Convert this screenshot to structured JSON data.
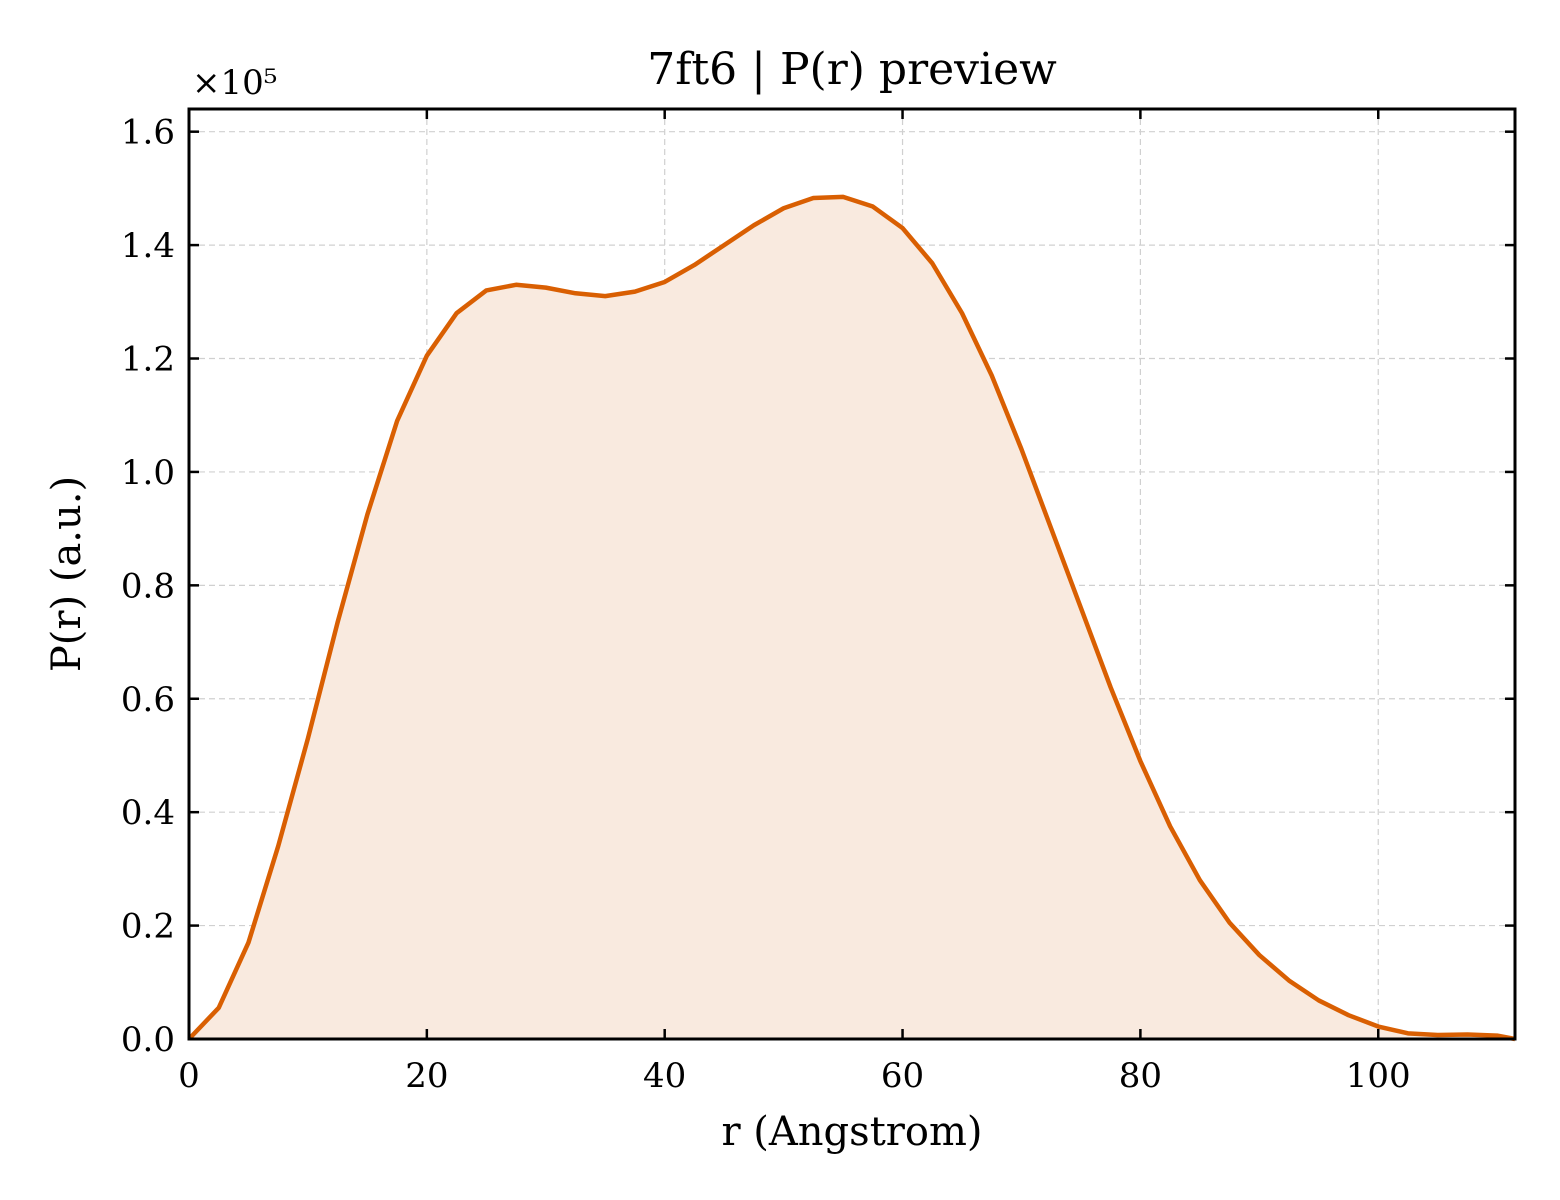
{
  "chart_data": {
    "type": "area",
    "title": "7ft6 | P(r) preview",
    "xlabel": "r (Angstrom)",
    "ylabel": "P(r) (a.u.)",
    "y_offset_label": "×10⁵",
    "xlim": [
      0,
      111.5
    ],
    "ylim": [
      0,
      1.64
    ],
    "x_ticks": [
      0,
      20,
      40,
      60,
      80,
      100
    ],
    "x_tick_labels": [
      "0",
      "20",
      "40",
      "60",
      "80",
      "100"
    ],
    "y_ticks": [
      0.0,
      0.2,
      0.4,
      0.6,
      0.8,
      1.0,
      1.2,
      1.4,
      1.6
    ],
    "y_tick_labels": [
      "0.0",
      "0.2",
      "0.4",
      "0.6",
      "0.8",
      "1.0",
      "1.2",
      "1.4",
      "1.6"
    ],
    "grid": true,
    "colors": {
      "line": "#d95f02",
      "fill": "#f9eadf"
    },
    "series": [
      {
        "x": [
          0,
          2.5,
          5,
          7.5,
          10,
          12.5,
          15,
          17.5,
          20,
          22.5,
          25,
          27.5,
          30,
          32.5,
          35,
          37.5,
          40,
          42.5,
          45,
          47.5,
          50,
          52.5,
          55,
          57.5,
          60,
          62.5,
          65,
          67.5,
          70,
          72.5,
          75,
          77.5,
          80,
          82.5,
          85,
          87.5,
          90,
          92.5,
          95,
          97.5,
          100,
          102.5,
          105,
          107.5,
          110,
          111.5
        ],
        "values": [
          0.0,
          0.055,
          0.17,
          0.34,
          0.53,
          0.735,
          0.925,
          1.09,
          1.205,
          1.28,
          1.32,
          1.33,
          1.325,
          1.315,
          1.31,
          1.318,
          1.335,
          1.365,
          1.4,
          1.435,
          1.465,
          1.483,
          1.485,
          1.468,
          1.43,
          1.368,
          1.28,
          1.17,
          1.04,
          0.9,
          0.76,
          0.62,
          0.49,
          0.375,
          0.28,
          0.205,
          0.148,
          0.103,
          0.068,
          0.042,
          0.022,
          0.01,
          0.007,
          0.008,
          0.006,
          0.0
        ]
      }
    ]
  }
}
